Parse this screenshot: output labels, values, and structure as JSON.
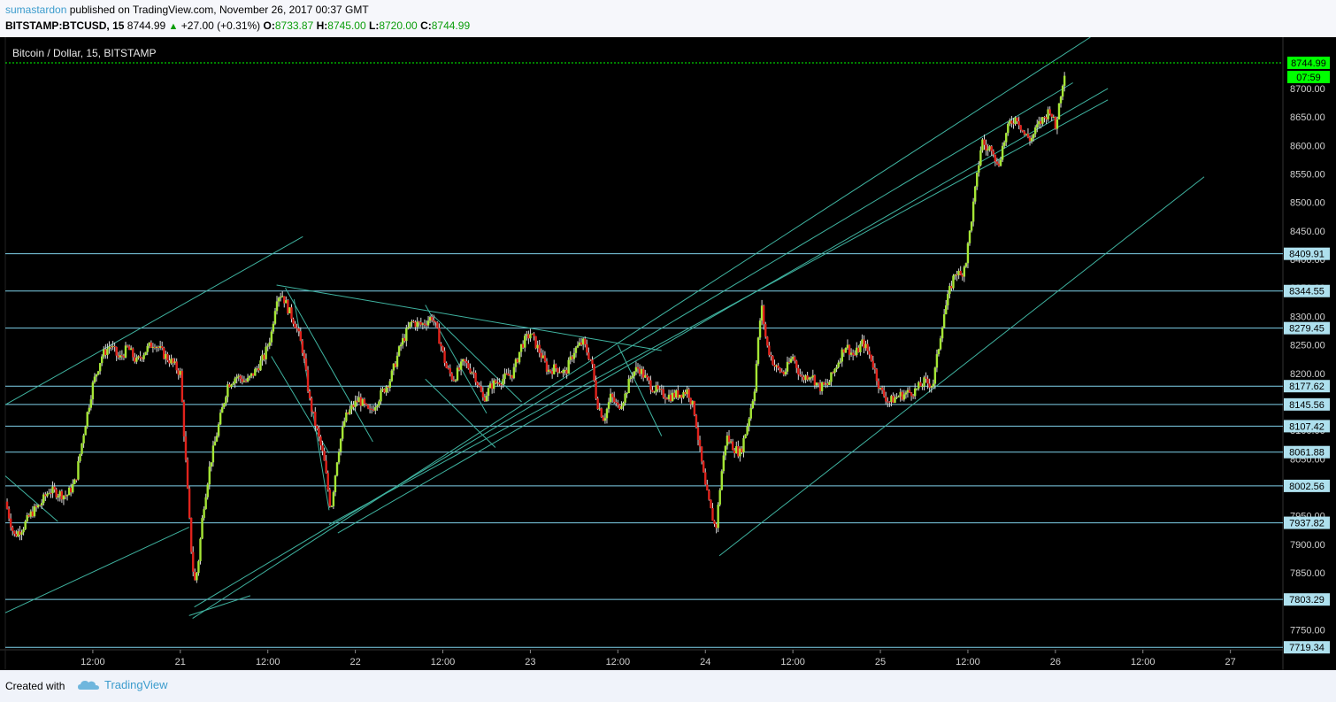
{
  "header": {
    "user": "sumastardon",
    "published": "published on TradingView.com, November 26, 2017 00:37 GMT",
    "symbol": "BITSTAMP:BTCUSD, 15",
    "last": "8744.99",
    "change": "+27.00 (+0.31%)",
    "o_label": "O:",
    "o": "8733.87",
    "h_label": "H:",
    "h": "8745.00",
    "l_label": "L:",
    "l": "8720.00",
    "c_label": "C:",
    "c": "8744.99"
  },
  "footer": {
    "created": "Created with",
    "brand": "TradingView"
  },
  "colors": {
    "up": "#a5e635",
    "down": "#e0231c",
    "wick": "#d8d8d8",
    "line": "#3fb3a0",
    "hline": "#7fd1ea",
    "price_tag": "#00ff00"
  },
  "chart_data": {
    "type": "candlestick",
    "title": "Bitcoin / Dollar, 15, BITSTAMP",
    "ylim": [
      7715,
      8790
    ],
    "yticks": [
      "8700.00",
      "8650.00",
      "8600.00",
      "8550.00",
      "8500.00",
      "8450.00",
      "8400.00",
      "8350.00",
      "8300.00",
      "8250.00",
      "8200.00",
      "8150.00",
      "8100.00",
      "8050.00",
      "8000.00",
      "7950.00",
      "7900.00",
      "7850.00",
      "7800.00",
      "7750.00"
    ],
    "xlim": [
      0,
      7.3
    ],
    "xticks": [
      {
        "label": "12:00",
        "x": 0.5
      },
      {
        "label": "21",
        "x": 1.0
      },
      {
        "label": "12:00",
        "x": 1.5
      },
      {
        "label": "22",
        "x": 2.0
      },
      {
        "label": "12:00",
        "x": 2.5
      },
      {
        "label": "23",
        "x": 3.0
      },
      {
        "label": "12:00",
        "x": 3.5
      },
      {
        "label": "24",
        "x": 4.0
      },
      {
        "label": "12:00",
        "x": 4.5
      },
      {
        "label": "25",
        "x": 5.0
      },
      {
        "label": "12:00",
        "x": 5.5
      },
      {
        "label": "26",
        "x": 6.0
      },
      {
        "label": "12:00",
        "x": 6.5
      },
      {
        "label": "27",
        "x": 7.0
      }
    ],
    "last_price": "8744.99",
    "countdown": "07:59",
    "horizontal_levels": [
      "8409.91",
      "8344.55",
      "8279.45",
      "8177.62",
      "8145.56",
      "8107.42",
      "8061.88",
      "8002.56",
      "7937.82",
      "7803.29",
      "7719.34"
    ],
    "price_path": [
      [
        0.0,
        7975
      ],
      [
        0.05,
        7915
      ],
      [
        0.1,
        7930
      ],
      [
        0.15,
        7955
      ],
      [
        0.2,
        7970
      ],
      [
        0.25,
        7995
      ],
      [
        0.3,
        7990
      ],
      [
        0.35,
        7985
      ],
      [
        0.4,
        8010
      ],
      [
        0.45,
        8100
      ],
      [
        0.5,
        8180
      ],
      [
        0.55,
        8230
      ],
      [
        0.6,
        8250
      ],
      [
        0.65,
        8225
      ],
      [
        0.7,
        8245
      ],
      [
        0.75,
        8220
      ],
      [
        0.8,
        8240
      ],
      [
        0.85,
        8255
      ],
      [
        0.9,
        8235
      ],
      [
        0.95,
        8220
      ],
      [
        1.0,
        8200
      ],
      [
        1.03,
        8050
      ],
      [
        1.06,
        7900
      ],
      [
        1.08,
        7830
      ],
      [
        1.1,
        7860
      ],
      [
        1.13,
        7960
      ],
      [
        1.17,
        8040
      ],
      [
        1.22,
        8110
      ],
      [
        1.27,
        8180
      ],
      [
        1.32,
        8195
      ],
      [
        1.38,
        8185
      ],
      [
        1.43,
        8205
      ],
      [
        1.48,
        8230
      ],
      [
        1.52,
        8270
      ],
      [
        1.55,
        8335
      ],
      [
        1.58,
        8340
      ],
      [
        1.62,
        8310
      ],
      [
        1.66,
        8285
      ],
      [
        1.7,
        8240
      ],
      [
        1.74,
        8150
      ],
      [
        1.78,
        8100
      ],
      [
        1.82,
        8050
      ],
      [
        1.86,
        7960
      ],
      [
        1.9,
        8060
      ],
      [
        1.94,
        8120
      ],
      [
        1.98,
        8140
      ],
      [
        2.02,
        8155
      ],
      [
        2.08,
        8130
      ],
      [
        2.14,
        8160
      ],
      [
        2.2,
        8190
      ],
      [
        2.26,
        8250
      ],
      [
        2.32,
        8290
      ],
      [
        2.38,
        8285
      ],
      [
        2.44,
        8300
      ],
      [
        2.48,
        8260
      ],
      [
        2.52,
        8210
      ],
      [
        2.56,
        8190
      ],
      [
        2.62,
        8220
      ],
      [
        2.68,
        8200
      ],
      [
        2.73,
        8155
      ],
      [
        2.78,
        8180
      ],
      [
        2.84,
        8190
      ],
      [
        2.9,
        8200
      ],
      [
        2.95,
        8250
      ],
      [
        3.0,
        8270
      ],
      [
        3.05,
        8240
      ],
      [
        3.1,
        8205
      ],
      [
        3.15,
        8210
      ],
      [
        3.2,
        8200
      ],
      [
        3.25,
        8240
      ],
      [
        3.3,
        8255
      ],
      [
        3.35,
        8220
      ],
      [
        3.38,
        8150
      ],
      [
        3.42,
        8120
      ],
      [
        3.46,
        8160
      ],
      [
        3.5,
        8140
      ],
      [
        3.54,
        8160
      ],
      [
        3.58,
        8200
      ],
      [
        3.62,
        8210
      ],
      [
        3.66,
        8190
      ],
      [
        3.7,
        8175
      ],
      [
        3.74,
        8165
      ],
      [
        3.8,
        8160
      ],
      [
        3.86,
        8165
      ],
      [
        3.9,
        8170
      ],
      [
        3.94,
        8130
      ],
      [
        3.97,
        8060
      ],
      [
        4.0,
        8000
      ],
      [
        4.03,
        7960
      ],
      [
        4.06,
        7925
      ],
      [
        4.09,
        8020
      ],
      [
        4.12,
        8090
      ],
      [
        4.16,
        8070
      ],
      [
        4.2,
        8060
      ],
      [
        4.24,
        8110
      ],
      [
        4.28,
        8170
      ],
      [
        4.3,
        8250
      ],
      [
        4.32,
        8320
      ],
      [
        4.35,
        8250
      ],
      [
        4.4,
        8210
      ],
      [
        4.45,
        8200
      ],
      [
        4.5,
        8230
      ],
      [
        4.55,
        8190
      ],
      [
        4.6,
        8200
      ],
      [
        4.65,
        8175
      ],
      [
        4.7,
        8180
      ],
      [
        4.75,
        8215
      ],
      [
        4.8,
        8250
      ],
      [
        4.85,
        8230
      ],
      [
        4.9,
        8255
      ],
      [
        4.95,
        8225
      ],
      [
        5.0,
        8170
      ],
      [
        5.05,
        8150
      ],
      [
        5.1,
        8160
      ],
      [
        5.15,
        8165
      ],
      [
        5.2,
        8170
      ],
      [
        5.25,
        8185
      ],
      [
        5.3,
        8180
      ],
      [
        5.33,
        8240
      ],
      [
        5.36,
        8300
      ],
      [
        5.4,
        8350
      ],
      [
        5.43,
        8380
      ],
      [
        5.46,
        8370
      ],
      [
        5.49,
        8400
      ],
      [
        5.52,
        8470
      ],
      [
        5.55,
        8540
      ],
      [
        5.58,
        8610
      ],
      [
        5.61,
        8590
      ],
      [
        5.64,
        8600
      ],
      [
        5.67,
        8560
      ],
      [
        5.7,
        8600
      ],
      [
        5.74,
        8640
      ],
      [
        5.78,
        8650
      ],
      [
        5.82,
        8620
      ],
      [
        5.86,
        8610
      ],
      [
        5.9,
        8635
      ],
      [
        5.94,
        8650
      ],
      [
        5.97,
        8665
      ],
      [
        6.0,
        8630
      ],
      [
        6.03,
        8690
      ],
      [
        6.06,
        8745
      ]
    ]
  }
}
